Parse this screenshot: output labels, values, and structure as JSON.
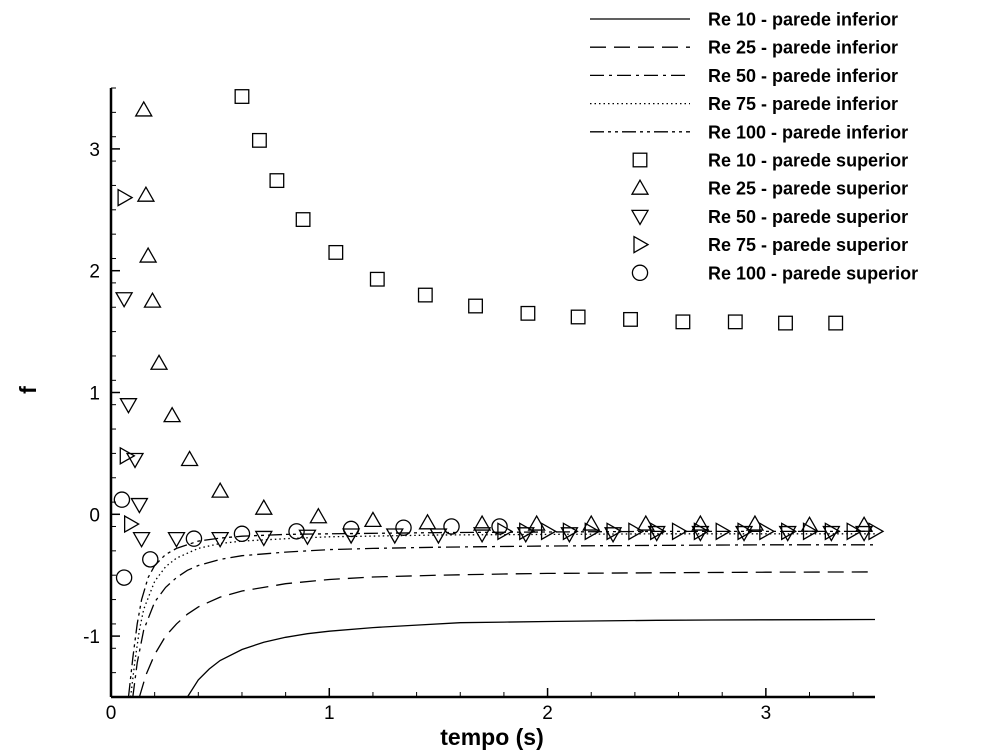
{
  "chart_data": {
    "type": "scatter",
    "xlabel": "tempo (s)",
    "ylabel": "f",
    "xlim": [
      0,
      3.5
    ],
    "ylim": [
      -1.5,
      3.5
    ],
    "x_ticks": [
      "0",
      "1",
      "2",
      "3"
    ],
    "y_ticks": [
      "-1",
      "0",
      "1",
      "2",
      "3"
    ],
    "grid": false,
    "legend_position": "top-right",
    "series": [
      {
        "name": "Re 10 - parede inferior",
        "kind": "line",
        "dash": "solid",
        "x": [
          0.35,
          0.4,
          0.45,
          0.5,
          0.6,
          0.7,
          0.8,
          0.9,
          1.0,
          1.2,
          1.4,
          1.6,
          1.8,
          2.0,
          2.25,
          2.5,
          2.75,
          3.0,
          3.25,
          3.5
        ],
        "y": [
          -1.5,
          -1.36,
          -1.27,
          -1.2,
          -1.11,
          -1.05,
          -1.01,
          -0.98,
          -0.96,
          -0.93,
          -0.91,
          -0.89,
          -0.885,
          -0.88,
          -0.875,
          -0.87,
          -0.868,
          -0.866,
          -0.865,
          -0.864
        ]
      },
      {
        "name": "Re 25 - parede inferior",
        "kind": "line",
        "dash": "dashed",
        "x": [
          0.13,
          0.16,
          0.2,
          0.25,
          0.3,
          0.35,
          0.4,
          0.5,
          0.6,
          0.7,
          0.8,
          1.0,
          1.2,
          1.5,
          1.8,
          2.0,
          2.5,
          3.0,
          3.5
        ],
        "y": [
          -1.5,
          -1.32,
          -1.15,
          -1.0,
          -0.9,
          -0.82,
          -0.76,
          -0.68,
          -0.63,
          -0.6,
          -0.57,
          -0.535,
          -0.515,
          -0.5,
          -0.49,
          -0.485,
          -0.48,
          -0.475,
          -0.473
        ]
      },
      {
        "name": "Re 50 - parede inferior",
        "kind": "line",
        "dash": "dashdot",
        "x": [
          0.1,
          0.12,
          0.15,
          0.2,
          0.25,
          0.3,
          0.35,
          0.4,
          0.5,
          0.6,
          0.8,
          1.0,
          1.2,
          1.5,
          2.0,
          2.5,
          3.0,
          3.5
        ],
        "y": [
          -1.5,
          -1.22,
          -0.95,
          -0.72,
          -0.6,
          -0.52,
          -0.46,
          -0.42,
          -0.37,
          -0.34,
          -0.31,
          -0.29,
          -0.28,
          -0.27,
          -0.26,
          -0.255,
          -0.25,
          -0.25
        ]
      },
      {
        "name": "Re 75 - parede inferior",
        "kind": "line",
        "dash": "dotted",
        "x": [
          0.09,
          0.11,
          0.13,
          0.15,
          0.2,
          0.25,
          0.3,
          0.4,
          0.5,
          0.6,
          0.8,
          1.0,
          1.5,
          2.0,
          2.5,
          3.0,
          3.5
        ],
        "y": [
          -1.5,
          -1.2,
          -0.95,
          -0.78,
          -0.55,
          -0.43,
          -0.36,
          -0.28,
          -0.24,
          -0.22,
          -0.2,
          -0.185,
          -0.17,
          -0.165,
          -0.16,
          -0.16,
          -0.16
        ]
      },
      {
        "name": "Re 100 - parede inferior",
        "kind": "line",
        "dash": "dashdotdot",
        "x": [
          0.08,
          0.1,
          0.12,
          0.14,
          0.17,
          0.2,
          0.25,
          0.3,
          0.4,
          0.5,
          0.6,
          0.8,
          1.0,
          1.5,
          2.0,
          2.5,
          3.0,
          3.5
        ],
        "y": [
          -1.5,
          -1.18,
          -0.9,
          -0.7,
          -0.52,
          -0.42,
          -0.33,
          -0.28,
          -0.22,
          -0.195,
          -0.18,
          -0.165,
          -0.16,
          -0.15,
          -0.145,
          -0.14,
          -0.14,
          -0.14
        ]
      },
      {
        "name": "Re 10 - parede superior",
        "kind": "marker",
        "marker": "square",
        "x": [
          0.6,
          0.68,
          0.76,
          0.88,
          1.03,
          1.22,
          1.44,
          1.67,
          1.91,
          2.14,
          2.38,
          2.62,
          2.86,
          3.09,
          3.32
        ],
        "y": [
          3.43,
          3.07,
          2.74,
          2.42,
          2.15,
          1.93,
          1.8,
          1.71,
          1.65,
          1.62,
          1.6,
          1.58,
          1.58,
          1.57,
          1.57
        ]
      },
      {
        "name": "Re 25 - parede superior",
        "kind": "marker",
        "marker": "triangle-up",
        "x": [
          0.15,
          0.16,
          0.17,
          0.19,
          0.22,
          0.28,
          0.36,
          0.5,
          0.7,
          0.95,
          1.2,
          1.45,
          1.7,
          1.95,
          2.2,
          2.45,
          2.7,
          2.95,
          3.2,
          3.45
        ],
        "y": [
          3.32,
          2.62,
          2.12,
          1.75,
          1.24,
          0.81,
          0.45,
          0.19,
          0.05,
          -0.02,
          -0.05,
          -0.07,
          -0.08,
          -0.08,
          -0.08,
          -0.08,
          -0.08,
          -0.08,
          -0.09,
          -0.09
        ]
      },
      {
        "name": "Re 50 - parede superior",
        "kind": "marker",
        "marker": "triangle-down",
        "x": [
          0.06,
          0.08,
          0.11,
          0.13,
          0.14,
          0.3,
          0.5,
          0.7,
          0.9,
          1.1,
          1.3,
          1.5,
          1.7,
          1.9,
          2.1,
          2.3,
          2.5,
          2.7,
          2.9,
          3.1,
          3.3,
          3.45
        ],
        "y": [
          1.77,
          0.9,
          0.45,
          0.08,
          -0.2,
          -0.2,
          -0.2,
          -0.19,
          -0.18,
          -0.17,
          -0.17,
          -0.17,
          -0.16,
          -0.16,
          -0.16,
          -0.16,
          -0.15,
          -0.15,
          -0.15,
          -0.15,
          -0.15,
          -0.15
        ]
      },
      {
        "name": "Re 75 - parede superior",
        "kind": "marker",
        "marker": "triangle-right",
        "x": [
          0.06,
          0.07,
          0.09,
          1.8,
          1.9,
          2.0,
          2.1,
          2.2,
          2.3,
          2.4,
          2.5,
          2.6,
          2.7,
          2.8,
          2.9,
          3.0,
          3.1,
          3.2,
          3.3,
          3.4,
          3.5
        ],
        "y": [
          2.6,
          0.48,
          -0.08,
          -0.14,
          -0.14,
          -0.14,
          -0.14,
          -0.14,
          -0.14,
          -0.14,
          -0.14,
          -0.14,
          -0.14,
          -0.14,
          -0.14,
          -0.14,
          -0.14,
          -0.14,
          -0.14,
          -0.14,
          -0.14
        ]
      },
      {
        "name": "Re 100 - parede superior",
        "kind": "marker",
        "marker": "circle",
        "x": [
          0.05,
          0.06,
          0.18,
          0.38,
          0.6,
          0.85,
          1.1,
          1.34,
          1.56,
          1.78
        ],
        "y": [
          0.12,
          -0.52,
          -0.37,
          -0.2,
          -0.16,
          -0.14,
          -0.12,
          -0.11,
          -0.1,
          -0.1
        ]
      }
    ]
  }
}
